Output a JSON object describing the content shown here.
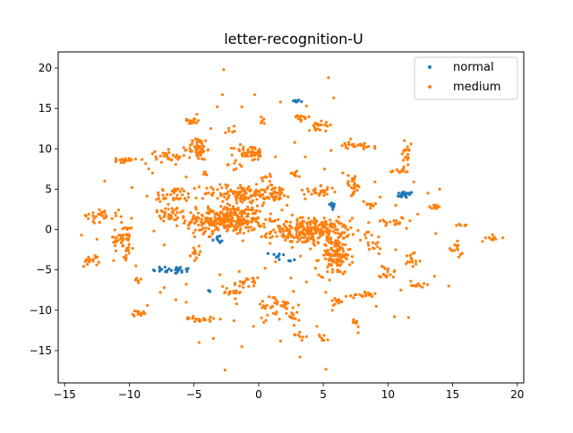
{
  "chart_data": {
    "type": "scatter",
    "title": "letter-recognition-U",
    "xlabel": "",
    "ylabel": "",
    "xlim": [
      -15.5,
      20.5
    ],
    "ylim": [
      -19,
      22
    ],
    "xticks": [
      -15,
      -10,
      -5,
      0,
      5,
      10,
      15,
      20
    ],
    "yticks": [
      -15,
      -10,
      -5,
      0,
      5,
      10,
      15,
      20
    ],
    "grid": false,
    "legend_position": "top-right",
    "series": [
      {
        "name": "normal",
        "color": "#1f77b4",
        "clusters": [
          {
            "x": 2.9,
            "y": 15.9,
            "sx": 0.15,
            "sy": 0.08,
            "n": 12
          },
          {
            "x": 5.7,
            "y": 3.0,
            "sx": 0.12,
            "sy": 0.3,
            "n": 14
          },
          {
            "x": 11.3,
            "y": 4.3,
            "sx": 0.35,
            "sy": 0.2,
            "n": 20
          },
          {
            "x": -6.6,
            "y": -5.0,
            "sx": 0.8,
            "sy": 0.25,
            "n": 30
          },
          {
            "x": -3.2,
            "y": -1.2,
            "sx": 0.3,
            "sy": 0.25,
            "n": 8
          },
          {
            "x": 1.5,
            "y": -3.2,
            "sx": 0.3,
            "sy": 0.2,
            "n": 8
          },
          {
            "x": 2.4,
            "y": -3.8,
            "sx": 0.2,
            "sy": 0.15,
            "n": 6
          },
          {
            "x": -3.8,
            "y": -7.6,
            "sx": 0.08,
            "sy": 0.08,
            "n": 3
          }
        ]
      },
      {
        "name": "medium",
        "color": "#ff7f0e",
        "clusters": [
          {
            "x": -2.6,
            "y": 1.2,
            "sx": 1.5,
            "sy": 0.9,
            "n": 320
          },
          {
            "x": 4.0,
            "y": -0.2,
            "sx": 1.5,
            "sy": 0.8,
            "n": 280
          },
          {
            "x": 5.9,
            "y": -3.3,
            "sx": 0.6,
            "sy": 1.2,
            "n": 120
          },
          {
            "x": -1.4,
            "y": 4.5,
            "sx": 1.4,
            "sy": 0.6,
            "n": 110
          },
          {
            "x": -4.7,
            "y": 10.0,
            "sx": 0.35,
            "sy": 0.7,
            "n": 60
          },
          {
            "x": -0.7,
            "y": 9.5,
            "sx": 0.6,
            "sy": 0.5,
            "n": 50
          },
          {
            "x": 1.3,
            "y": 4.5,
            "sx": 0.6,
            "sy": 0.5,
            "n": 40
          },
          {
            "x": -6.5,
            "y": 4.2,
            "sx": 0.8,
            "sy": 0.5,
            "n": 40
          },
          {
            "x": -7.0,
            "y": 2.0,
            "sx": 0.6,
            "sy": 0.5,
            "n": 30
          },
          {
            "x": -10.4,
            "y": -1.0,
            "sx": 0.4,
            "sy": 1.2,
            "n": 50
          },
          {
            "x": -12.2,
            "y": 1.8,
            "sx": 0.7,
            "sy": 0.4,
            "n": 30
          },
          {
            "x": -10.3,
            "y": 8.6,
            "sx": 0.4,
            "sy": 0.15,
            "n": 20
          },
          {
            "x": -6.8,
            "y": 9.0,
            "sx": 0.6,
            "sy": 0.4,
            "n": 30
          },
          {
            "x": -5.1,
            "y": 13.5,
            "sx": 0.3,
            "sy": 0.3,
            "n": 15
          },
          {
            "x": 4.8,
            "y": 13.0,
            "sx": 0.5,
            "sy": 0.3,
            "n": 20
          },
          {
            "x": 3.3,
            "y": 13.7,
            "sx": 0.3,
            "sy": 0.2,
            "n": 12
          },
          {
            "x": 7.0,
            "y": 10.5,
            "sx": 0.5,
            "sy": 0.3,
            "n": 15
          },
          {
            "x": 8.3,
            "y": 10.3,
            "sx": 0.3,
            "sy": 0.2,
            "n": 10
          },
          {
            "x": 4.7,
            "y": 4.7,
            "sx": 0.6,
            "sy": 0.3,
            "n": 30
          },
          {
            "x": 7.3,
            "y": 5.6,
            "sx": 0.3,
            "sy": 0.6,
            "n": 25
          },
          {
            "x": 8.5,
            "y": 3.0,
            "sx": 0.3,
            "sy": 0.3,
            "n": 12
          },
          {
            "x": 10.9,
            "y": 7.2,
            "sx": 0.4,
            "sy": 0.15,
            "n": 12
          },
          {
            "x": 11.5,
            "y": 9.5,
            "sx": 0.2,
            "sy": 1.0,
            "n": 20
          },
          {
            "x": 10.2,
            "y": 1.0,
            "sx": 0.6,
            "sy": 0.3,
            "n": 20
          },
          {
            "x": 13.7,
            "y": 2.8,
            "sx": 0.2,
            "sy": 0.3,
            "n": 12
          },
          {
            "x": 15.2,
            "y": -2.5,
            "sx": 0.3,
            "sy": 0.4,
            "n": 15
          },
          {
            "x": 18.2,
            "y": -1.1,
            "sx": 0.3,
            "sy": 0.2,
            "n": 10
          },
          {
            "x": 12.0,
            "y": -3.5,
            "sx": 0.3,
            "sy": 0.5,
            "n": 15
          },
          {
            "x": 12.2,
            "y": -6.8,
            "sx": 0.3,
            "sy": 0.3,
            "n": 12
          },
          {
            "x": 7.8,
            "y": -8.2,
            "sx": 0.7,
            "sy": 0.2,
            "n": 20
          },
          {
            "x": 6.2,
            "y": -9.0,
            "sx": 0.4,
            "sy": 0.3,
            "n": 12
          },
          {
            "x": 1.5,
            "y": -9.4,
            "sx": 0.8,
            "sy": 0.7,
            "n": 40
          },
          {
            "x": -0.9,
            "y": -6.7,
            "sx": 0.5,
            "sy": 0.4,
            "n": 20
          },
          {
            "x": -2.1,
            "y": -7.6,
            "sx": 0.5,
            "sy": 0.4,
            "n": 15
          },
          {
            "x": -4.5,
            "y": -11.1,
            "sx": 0.6,
            "sy": 0.15,
            "n": 20
          },
          {
            "x": -9.3,
            "y": -10.4,
            "sx": 0.3,
            "sy": 0.2,
            "n": 15
          },
          {
            "x": -9.4,
            "y": -6.3,
            "sx": 0.15,
            "sy": 0.15,
            "n": 6
          },
          {
            "x": -13.0,
            "y": -3.7,
            "sx": 0.3,
            "sy": 0.5,
            "n": 15
          },
          {
            "x": -4.8,
            "y": -3.0,
            "sx": 0.3,
            "sy": 0.4,
            "n": 12
          },
          {
            "x": 2.5,
            "y": -11.0,
            "sx": 0.3,
            "sy": 0.5,
            "n": 12
          },
          {
            "x": 3.2,
            "y": -13.0,
            "sx": 0.2,
            "sy": 0.3,
            "n": 8
          },
          {
            "x": 7.4,
            "y": -11.3,
            "sx": 0.2,
            "sy": 0.3,
            "n": 8
          },
          {
            "x": 5.0,
            "y": -13.5,
            "sx": 0.2,
            "sy": 0.3,
            "n": 8
          },
          {
            "x": 9.9,
            "y": -5.4,
            "sx": 0.4,
            "sy": 0.5,
            "n": 15
          },
          {
            "x": 8.7,
            "y": -1.5,
            "sx": 0.4,
            "sy": 0.6,
            "n": 15
          },
          {
            "x": -4.3,
            "y": 7.0,
            "sx": 0.2,
            "sy": 0.2,
            "n": 6
          },
          {
            "x": -1.8,
            "y": 7.7,
            "sx": 0.3,
            "sy": 0.3,
            "n": 8
          },
          {
            "x": 0.7,
            "y": 6.5,
            "sx": 0.3,
            "sy": 0.3,
            "n": 8
          },
          {
            "x": 2.7,
            "y": 6.9,
            "sx": 0.3,
            "sy": 0.2,
            "n": 8
          },
          {
            "x": -2.3,
            "y": 12.3,
            "sx": 0.2,
            "sy": 0.2,
            "n": 5
          },
          {
            "x": 0.4,
            "y": 13.6,
            "sx": 0.2,
            "sy": 0.2,
            "n": 5
          },
          {
            "x": 15.8,
            "y": 0.6,
            "sx": 0.15,
            "sy": 0.15,
            "n": 5
          }
        ],
        "scatter_points": [
          [
            -2.7,
            19.8
          ],
          [
            5.4,
            18.8
          ],
          [
            -2.8,
            16.7
          ],
          [
            -0.3,
            16.7
          ],
          [
            5.8,
            16.3
          ],
          [
            1.7,
            15.8
          ],
          [
            -1.3,
            15.2
          ],
          [
            -3.2,
            15.2
          ],
          [
            3.7,
            15.3
          ],
          [
            -4.1,
            11.0
          ],
          [
            -8.2,
            7.0
          ],
          [
            -11.9,
            6.0
          ],
          [
            -8.5,
            7.5
          ],
          [
            -9.8,
            5.2
          ],
          [
            -5.6,
            6.5
          ],
          [
            12.0,
            5.9
          ],
          [
            14.0,
            5.0
          ],
          [
            13.1,
            4.5
          ],
          [
            10.6,
            3.0
          ],
          [
            12.3,
            1.9
          ],
          [
            13.7,
            -0.5
          ],
          [
            15.3,
            0.5
          ],
          [
            9.3,
            -3.0
          ],
          [
            10.6,
            -2.5
          ],
          [
            11.0,
            -7.5
          ],
          [
            13.6,
            -5.8
          ],
          [
            14.7,
            -7.0
          ],
          [
            10.5,
            -10.8
          ],
          [
            11.6,
            -10.9
          ],
          [
            7.7,
            -12.8
          ],
          [
            9.1,
            -9.5
          ],
          [
            5.7,
            -10.0
          ],
          [
            4.5,
            -12.0
          ],
          [
            3.2,
            -15.8
          ],
          [
            5.2,
            -17.3
          ],
          [
            -2.6,
            -17.4
          ],
          [
            -3.5,
            -13.5
          ],
          [
            -4.6,
            -14.0
          ],
          [
            -1.3,
            -14.5
          ],
          [
            -1.9,
            -11.3
          ],
          [
            -5.6,
            -9.0
          ],
          [
            -6.4,
            -8.7
          ],
          [
            -7.6,
            -7.8
          ],
          [
            -7.3,
            -7.2
          ],
          [
            -8.6,
            -9.4
          ],
          [
            -9.5,
            -4.5
          ],
          [
            -11.1,
            -2.0
          ],
          [
            -12.7,
            0.8
          ],
          [
            -13.7,
            -0.7
          ],
          [
            -12.5,
            -1.2
          ],
          [
            -7.3,
            -1.9
          ],
          [
            -8.1,
            -0.2
          ],
          [
            -5.6,
            -6.8
          ],
          [
            -3.0,
            -5.6
          ],
          [
            -1.5,
            -5.2
          ],
          [
            0.5,
            -4.8
          ],
          [
            1.3,
            -4.0
          ],
          [
            2.5,
            -6.0
          ],
          [
            3.7,
            -6.5
          ],
          [
            4.4,
            -4.8
          ],
          [
            5.2,
            -7.8
          ],
          [
            0.4,
            -11.5
          ],
          [
            -0.4,
            -12.0
          ],
          [
            1.7,
            -13.8
          ],
          [
            -1.7,
            -9.2
          ],
          [
            2.2,
            3.0
          ],
          [
            3.6,
            3.8
          ],
          [
            1.8,
            2.4
          ],
          [
            -0.5,
            2.7
          ],
          [
            2.6,
            1.8
          ],
          [
            9.0,
            5.9
          ],
          [
            9.4,
            4.0
          ],
          [
            6.5,
            7.0
          ],
          [
            5.1,
            7.5
          ],
          [
            3.6,
            9.0
          ],
          [
            5.6,
            9.8
          ],
          [
            2.8,
            10.8
          ],
          [
            1.3,
            9.0
          ],
          [
            -1.9,
            12.8
          ],
          [
            -3.7,
            12.5
          ]
        ]
      }
    ]
  }
}
